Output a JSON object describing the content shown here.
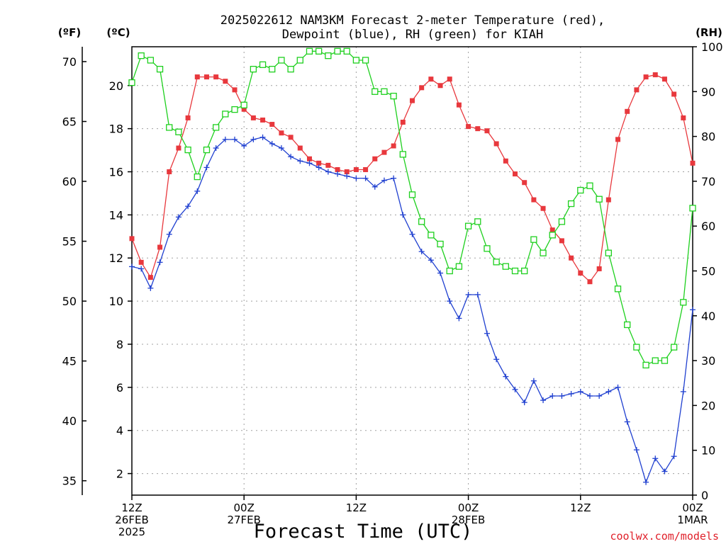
{
  "chart_data": {
    "type": "line",
    "title_lines": [
      "2025022612 NAM3KM Forecast 2-meter Temperature (red),",
      "Dewpoint (blue), RH (green) for KIAH"
    ],
    "xlabel": "Forecast Time (UTC)",
    "credit": "coolwx.com/models",
    "units": {
      "fahrenheit": "(ºF)",
      "celsius": "(ºC)",
      "rh": "(RH)"
    },
    "x_range_hours": [
      0,
      60
    ],
    "x_ticks": [
      {
        "hour": 0,
        "lines": [
          "12Z",
          "26FEB",
          "2025"
        ]
      },
      {
        "hour": 12,
        "lines": [
          "00Z",
          "27FEB"
        ]
      },
      {
        "hour": 24,
        "lines": [
          "12Z"
        ]
      },
      {
        "hour": 36,
        "lines": [
          "00Z",
          "28FEB"
        ]
      },
      {
        "hour": 48,
        "lines": [
          "12Z"
        ]
      },
      {
        "hour": 60,
        "lines": [
          "00Z",
          "1MAR"
        ]
      }
    ],
    "y_celsius_range": [
      1,
      21.8
    ],
    "y_celsius_ticks": [
      2,
      4,
      6,
      8,
      10,
      12,
      14,
      16,
      18,
      20
    ],
    "y_fahrenheit_ticks": [
      35,
      40,
      45,
      50,
      55,
      60,
      65,
      70
    ],
    "y_rh_range": [
      0,
      100
    ],
    "y_rh_ticks": [
      0,
      10,
      20,
      30,
      40,
      50,
      60,
      70,
      80,
      90,
      100
    ],
    "grid": true,
    "series": [
      {
        "name": "Temperature (red)",
        "axis": "celsius",
        "color": "#e8383d",
        "marker": "filled-square",
        "values": [
          12.9,
          11.8,
          11.1,
          12.5,
          16.0,
          17.1,
          18.5,
          20.4,
          20.4,
          20.4,
          20.2,
          19.8,
          18.9,
          18.5,
          18.4,
          18.2,
          17.8,
          17.6,
          17.1,
          16.6,
          16.4,
          16.3,
          16.1,
          16.0,
          16.1,
          16.1,
          16.6,
          16.9,
          17.2,
          18.3,
          19.3,
          19.9,
          20.3,
          20.0,
          20.3,
          19.1,
          18.1,
          18.0,
          17.9,
          17.3,
          16.5,
          15.9,
          15.5,
          14.7,
          14.3,
          13.3,
          12.8,
          12.0,
          11.3,
          10.9,
          11.5,
          14.7,
          17.5,
          18.8,
          19.8,
          20.4,
          20.5,
          20.3,
          19.6,
          18.5,
          16.4
        ]
      },
      {
        "name": "Dewpoint (blue)",
        "axis": "celsius",
        "color": "#2040d0",
        "marker": "plus",
        "values": [
          11.6,
          11.5,
          10.6,
          11.8,
          13.1,
          13.9,
          14.4,
          15.1,
          16.2,
          17.1,
          17.5,
          17.5,
          17.2,
          17.5,
          17.6,
          17.3,
          17.1,
          16.7,
          16.5,
          16.4,
          16.2,
          16.0,
          15.9,
          15.8,
          15.7,
          15.7,
          15.3,
          15.6,
          15.7,
          14.0,
          13.1,
          12.3,
          11.9,
          11.3,
          10.0,
          9.2,
          10.3,
          10.3,
          8.5,
          7.3,
          6.5,
          5.9,
          5.3,
          6.3,
          5.4,
          5.6,
          5.6,
          5.7,
          5.8,
          5.6,
          5.6,
          5.8,
          6.0,
          4.4,
          3.1,
          1.6,
          2.7,
          2.1,
          2.8,
          5.8,
          9.6
        ]
      },
      {
        "name": "RH (green)",
        "axis": "rh",
        "color": "#1ed01e",
        "marker": "open-square",
        "values": [
          92,
          98,
          97,
          95,
          82,
          81,
          77,
          71,
          77,
          82,
          85,
          86,
          87,
          95,
          96,
          95,
          97,
          95,
          97,
          99,
          99,
          98,
          99,
          99,
          97,
          97,
          90,
          90,
          89,
          76,
          67,
          61,
          58,
          56,
          50,
          51,
          60,
          61,
          55,
          52,
          51,
          50,
          50,
          57,
          54,
          58,
          61,
          65,
          68,
          69,
          66,
          54,
          46,
          38,
          33,
          29,
          30,
          30,
          33,
          43,
          64
        ]
      }
    ]
  }
}
